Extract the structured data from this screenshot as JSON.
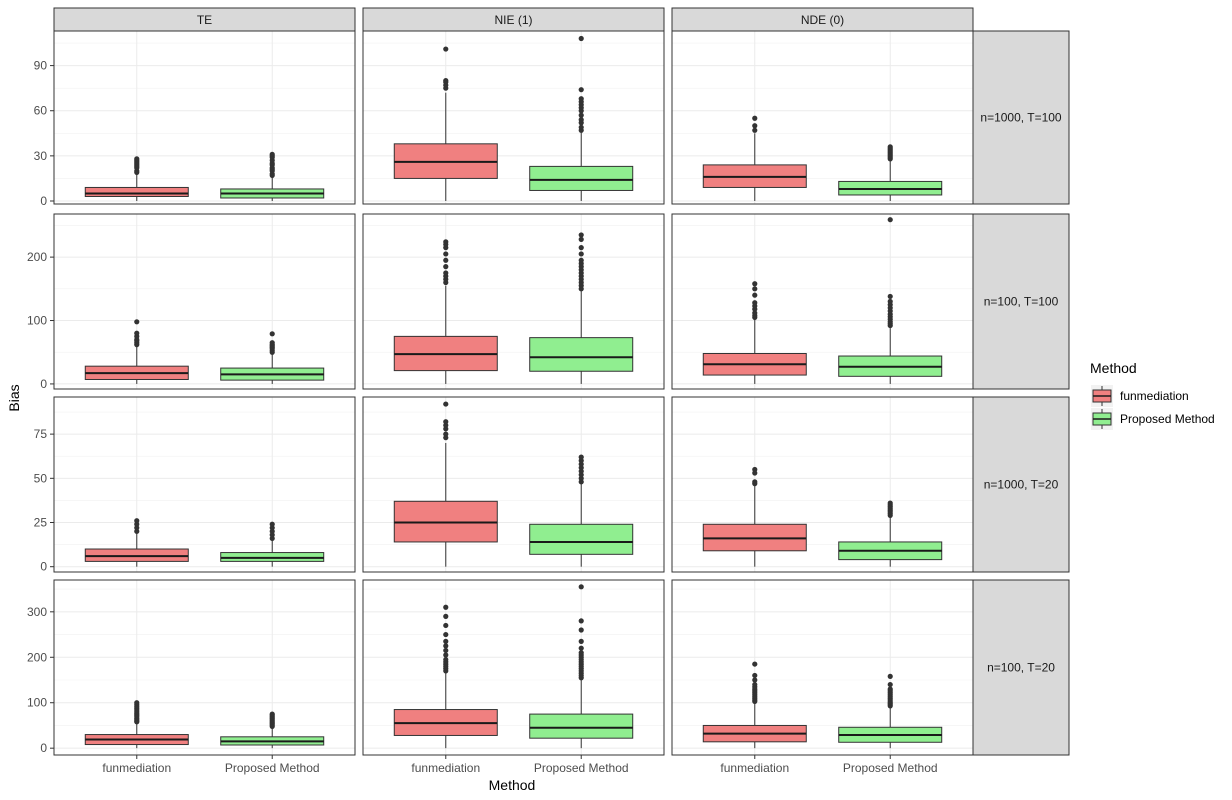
{
  "chart_data": {
    "type": "boxplot",
    "xlabel": "Method",
    "ylabel": "Bias",
    "categories": [
      "funmediation",
      "Proposed Method"
    ],
    "columns": [
      "TE",
      "NIE (1)",
      "NDE (0)"
    ],
    "rows": [
      "n=1000, T=100",
      "n=100, T=100",
      "n=1000, T=20",
      "n=100, T=20"
    ],
    "legend": {
      "title": "Method",
      "position": "right",
      "items": [
        {
          "label": "funmediation",
          "color": "#F08080"
        },
        {
          "label": "Proposed Method",
          "color": "#90EE90"
        }
      ]
    },
    "grid": true,
    "row_axes": [
      {
        "ylim": [
          -2,
          113
        ],
        "ticks": [
          0,
          30,
          60,
          90
        ]
      },
      {
        "ylim": [
          -8,
          268
        ],
        "ticks": [
          0,
          100,
          200
        ]
      },
      {
        "ylim": [
          -3,
          96
        ],
        "ticks": [
          0,
          25,
          50,
          75
        ]
      },
      {
        "ylim": [
          -15,
          370
        ],
        "ticks": [
          0,
          100,
          200,
          300
        ]
      }
    ],
    "panels": [
      {
        "row": 0,
        "col": 0,
        "boxes": [
          {
            "q1": 3,
            "median": 5,
            "q3": 9,
            "lower": 0,
            "upper": 18,
            "outliers": [
              19,
              20,
              22,
              23,
              24,
              25,
              26,
              27,
              28
            ]
          },
          {
            "q1": 2,
            "median": 5,
            "q3": 8,
            "lower": 0,
            "upper": 16,
            "outliers": [
              17,
              18,
              20,
              21,
              22,
              24,
              25,
              27,
              29,
              30,
              31
            ]
          }
        ]
      },
      {
        "row": 0,
        "col": 1,
        "boxes": [
          {
            "q1": 15,
            "median": 26,
            "q3": 38,
            "lower": 0,
            "upper": 72,
            "outliers": [
              75,
              77,
              79,
              80,
              101
            ]
          },
          {
            "q1": 7,
            "median": 14,
            "q3": 23,
            "lower": 0,
            "upper": 46,
            "outliers": [
              47,
              49,
              52,
              54,
              57,
              60,
              62,
              64,
              66,
              68,
              74,
              108
            ]
          }
        ]
      },
      {
        "row": 0,
        "col": 2,
        "boxes": [
          {
            "q1": 9,
            "median": 16,
            "q3": 24,
            "lower": 0,
            "upper": 45,
            "outliers": [
              47,
              50,
              55
            ]
          },
          {
            "q1": 4,
            "median": 8,
            "q3": 13,
            "lower": 0,
            "upper": 27,
            "outliers": [
              28,
              29,
              30,
              31,
              32,
              33,
              34,
              35,
              36
            ]
          }
        ]
      },
      {
        "row": 1,
        "col": 0,
        "boxes": [
          {
            "q1": 7,
            "median": 17,
            "q3": 28,
            "lower": 0,
            "upper": 60,
            "outliers": [
              62,
              65,
              68,
              70,
              75,
              80,
              98
            ]
          },
          {
            "q1": 6,
            "median": 15,
            "q3": 25,
            "lower": 0,
            "upper": 48,
            "outliers": [
              50,
              53,
              56,
              58,
              60,
              62,
              65,
              79
            ]
          }
        ]
      },
      {
        "row": 1,
        "col": 1,
        "boxes": [
          {
            "q1": 21,
            "median": 47,
            "q3": 75,
            "lower": 0,
            "upper": 155,
            "outliers": [
              160,
              165,
              170,
              175,
              185,
              195,
              205,
              215,
              220,
              224
            ]
          },
          {
            "q1": 20,
            "median": 42,
            "q3": 73,
            "lower": 0,
            "upper": 148,
            "outliers": [
              150,
              155,
              160,
              165,
              170,
              175,
              180,
              185,
              190,
              195,
              205,
              215,
              228,
              235
            ]
          }
        ]
      },
      {
        "row": 1,
        "col": 2,
        "boxes": [
          {
            "q1": 14,
            "median": 31,
            "q3": 48,
            "lower": 0,
            "upper": 102,
            "outliers": [
              105,
              108,
              112,
              118,
              123,
              128,
              140,
              150,
              158
            ]
          },
          {
            "q1": 12,
            "median": 27,
            "q3": 44,
            "lower": 0,
            "upper": 88,
            "outliers": [
              92,
              95,
              98,
              102,
              106,
              110,
              115,
              120,
              125,
              130,
              138,
              259
            ]
          }
        ]
      },
      {
        "row": 2,
        "col": 0,
        "boxes": [
          {
            "q1": 3,
            "median": 6,
            "q3": 10,
            "lower": 0,
            "upper": 19,
            "outliers": [
              20,
              22,
              24,
              26
            ]
          },
          {
            "q1": 3,
            "median": 5,
            "q3": 8,
            "lower": 0,
            "upper": 15,
            "outliers": [
              16,
              18,
              20,
              22,
              24
            ]
          }
        ]
      },
      {
        "row": 2,
        "col": 1,
        "boxes": [
          {
            "q1": 14,
            "median": 25,
            "q3": 37,
            "lower": 0,
            "upper": 70,
            "outliers": [
              73,
              75,
              78,
              80,
              82,
              92
            ]
          },
          {
            "q1": 7,
            "median": 14,
            "q3": 24,
            "lower": 0,
            "upper": 47,
            "outliers": [
              48,
              50,
              52,
              54,
              56,
              58,
              60,
              62
            ]
          }
        ]
      },
      {
        "row": 2,
        "col": 2,
        "boxes": [
          {
            "q1": 9,
            "median": 16,
            "q3": 24,
            "lower": 0,
            "upper": 46,
            "outliers": [
              47,
              48,
              53,
              55
            ]
          },
          {
            "q1": 4,
            "median": 9,
            "q3": 14,
            "lower": 0,
            "upper": 28,
            "outliers": [
              29,
              30,
              31,
              32,
              33,
              34,
              35,
              36
            ]
          }
        ]
      },
      {
        "row": 3,
        "col": 0,
        "boxes": [
          {
            "q1": 8,
            "median": 19,
            "q3": 30,
            "lower": 0,
            "upper": 55,
            "outliers": [
              58,
              60,
              63,
              66,
              70,
              73,
              76,
              80,
              84,
              88,
              92,
              96,
              100
            ]
          },
          {
            "q1": 7,
            "median": 15,
            "q3": 25,
            "lower": 0,
            "upper": 45,
            "outliers": [
              48,
              51,
              54,
              57,
              60,
              63,
              66,
              69,
              72,
              75
            ]
          }
        ]
      },
      {
        "row": 3,
        "col": 1,
        "boxes": [
          {
            "q1": 28,
            "median": 55,
            "q3": 85,
            "lower": 0,
            "upper": 165,
            "outliers": [
              170,
              175,
              180,
              185,
              190,
              195,
              205,
              215,
              225,
              235,
              250,
              270,
              290,
              310
            ]
          },
          {
            "q1": 22,
            "median": 45,
            "q3": 75,
            "lower": 0,
            "upper": 150,
            "outliers": [
              155,
              160,
              165,
              170,
              175,
              180,
              185,
              190,
              195,
              200,
              205,
              210,
              220,
              235,
              260,
              280,
              355
            ]
          }
        ]
      },
      {
        "row": 3,
        "col": 2,
        "boxes": [
          {
            "q1": 14,
            "median": 32,
            "q3": 50,
            "lower": 0,
            "upper": 100,
            "outliers": [
              103,
              106,
              110,
              114,
              118,
              122,
              126,
              130,
              135,
              140,
              150,
              160,
              185
            ]
          },
          {
            "q1": 13,
            "median": 29,
            "q3": 46,
            "lower": 0,
            "upper": 90,
            "outliers": [
              93,
              96,
              99,
              102,
              106,
              110,
              114,
              118,
              122,
              126,
              130,
              140,
              158
            ]
          }
        ]
      }
    ]
  }
}
